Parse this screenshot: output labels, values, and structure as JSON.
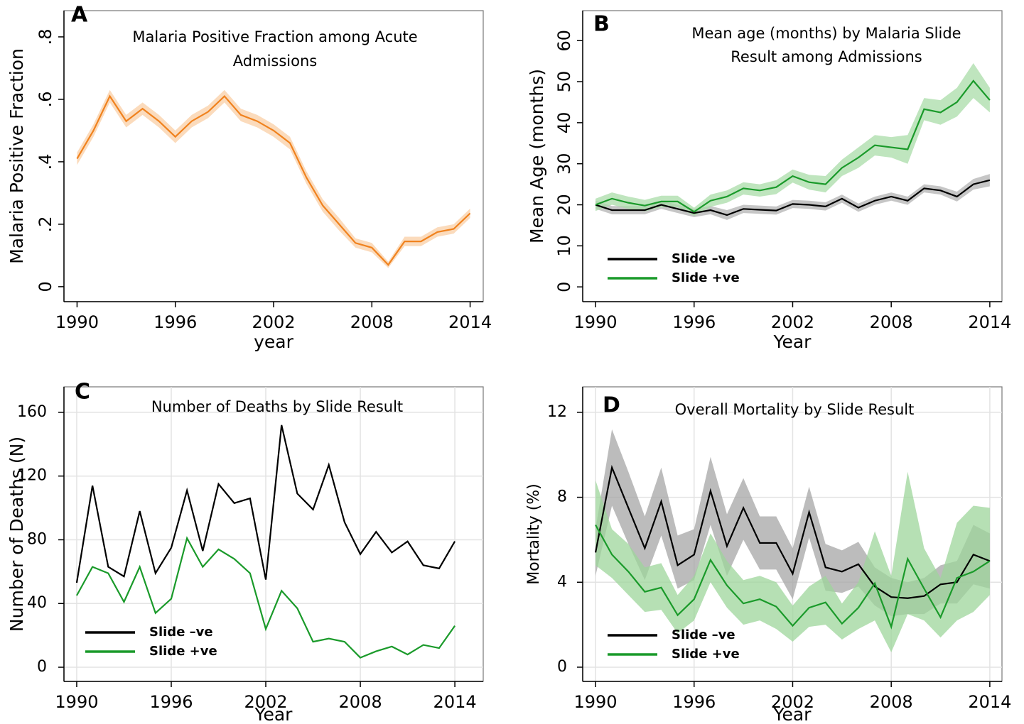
{
  "chart_data": [
    {
      "type": "line",
      "panel_label": "A",
      "title": [
        "Malaria Positive Fraction among Acute",
        "Admissions"
      ],
      "y_label": "Malaria Positive Fraction",
      "x_label": "year",
      "x": [
        1990,
        1991,
        1992,
        1993,
        1994,
        1995,
        1996,
        1997,
        1998,
        1999,
        2000,
        2001,
        2002,
        2003,
        2004,
        2005,
        2006,
        2007,
        2008,
        2009,
        2010,
        2011,
        2012,
        2013,
        2014
      ],
      "values": [
        0.41,
        0.5,
        0.61,
        0.53,
        0.57,
        0.53,
        0.48,
        0.53,
        0.56,
        0.61,
        0.55,
        0.53,
        0.5,
        0.46,
        0.35,
        0.26,
        0.2,
        0.14,
        0.125,
        0.07,
        0.145,
        0.145,
        0.175,
        0.185,
        0.235
      ],
      "upper": [
        0.43,
        0.52,
        0.63,
        0.55,
        0.59,
        0.55,
        0.5,
        0.55,
        0.58,
        0.63,
        0.57,
        0.55,
        0.52,
        0.48,
        0.37,
        0.28,
        0.22,
        0.155,
        0.14,
        0.08,
        0.16,
        0.16,
        0.19,
        0.2,
        0.25
      ],
      "lower": [
        0.39,
        0.48,
        0.59,
        0.51,
        0.55,
        0.51,
        0.46,
        0.51,
        0.54,
        0.59,
        0.53,
        0.51,
        0.48,
        0.44,
        0.33,
        0.24,
        0.18,
        0.125,
        0.11,
        0.06,
        0.13,
        0.13,
        0.16,
        0.17,
        0.22
      ],
      "color": "#f0821e",
      "band_color": "#f9cfa6",
      "xlim": [
        1989.2,
        2014.8
      ],
      "xticks": [
        1990,
        1996,
        2002,
        2008,
        2014
      ],
      "ylim": [
        -0.048,
        0.884
      ],
      "yticks": [
        0,
        {
          "value": 0.2,
          "label": ".2"
        },
        {
          "value": 0.4,
          "label": ".4"
        },
        {
          "value": 0.6,
          "label": ".6"
        },
        {
          "value": 0.8,
          "label": ".8"
        }
      ],
      "ytick_rotation": true
    },
    {
      "type": "line",
      "panel_label": "B",
      "title": [
        "Mean age (months) by Malaria Slide",
        "Result among Admissions"
      ],
      "y_label": "Mean Age (months)",
      "x_label": "Year",
      "x": [
        1990,
        1991,
        1992,
        1993,
        1994,
        1995,
        1996,
        1997,
        1998,
        1999,
        2000,
        2001,
        2002,
        2003,
        2004,
        2005,
        2006,
        2007,
        2008,
        2009,
        2010,
        2011,
        2012,
        2013,
        2014
      ],
      "series": [
        {
          "name": "Slide –ve",
          "color": "#000000",
          "band_color": "#b3b3b3",
          "values": [
            20,
            18.7,
            18.7,
            18.7,
            20,
            19,
            18,
            18.7,
            17.5,
            19,
            18.8,
            18.6,
            20.2,
            20,
            19.6,
            21.5,
            19.3,
            21,
            22,
            21,
            24,
            23.5,
            22,
            25,
            26
          ],
          "upper": [
            21,
            19.7,
            19.7,
            19.7,
            21,
            20,
            19,
            19.7,
            18.7,
            20,
            19.8,
            19.6,
            21.2,
            21,
            20.6,
            22.5,
            20.3,
            22,
            23,
            22,
            25,
            24.5,
            23.2,
            26.3,
            27.5
          ],
          "lower": [
            19,
            17.7,
            17.7,
            17.7,
            19,
            18,
            17,
            17.7,
            16.3,
            18,
            17.8,
            17.6,
            19.2,
            19,
            18.6,
            20.5,
            18.3,
            20,
            21,
            20,
            23,
            22.5,
            20.8,
            23.7,
            24.5
          ]
        },
        {
          "name": "Slide +ve",
          "color": "#1a9a2a",
          "band_color": "#a9dca8",
          "values": [
            20,
            21.5,
            20.5,
            19.8,
            20.8,
            20.8,
            18.3,
            21,
            22,
            24,
            23.5,
            24.3,
            27,
            25.5,
            25,
            29,
            31.5,
            34.5,
            34,
            33.5,
            43.3,
            42.5,
            45,
            50.2,
            45.5
          ],
          "upper": [
            21.5,
            23,
            22,
            21.2,
            22.2,
            22.2,
            19.3,
            22.5,
            23.5,
            25.5,
            25,
            26,
            28.6,
            27.3,
            27,
            31,
            34,
            37,
            36.5,
            37,
            46,
            45.5,
            48.5,
            54.5,
            48.5
          ],
          "lower": [
            18.5,
            20,
            19,
            18.4,
            19.4,
            19.4,
            17.3,
            19.5,
            20.5,
            22.5,
            22,
            22.6,
            25.4,
            23.7,
            23,
            27,
            29,
            32,
            31.5,
            30,
            40.6,
            39.5,
            41.5,
            46,
            42.5
          ]
        }
      ],
      "legend": "lower left",
      "xlim": [
        1989.22,
        2014.74
      ],
      "xticks": [
        1990,
        1996,
        2002,
        2008,
        2014
      ],
      "ylim": [
        -3.6,
        67.3
      ],
      "yticks": [
        0,
        10,
        20,
        30,
        40,
        50,
        60
      ],
      "ytick_rotation": true
    },
    {
      "type": "line",
      "panel_label": "C",
      "title": [
        "Number of Deaths by Slide Result"
      ],
      "y_label": "Number of Deaths (N)",
      "x_label": "Year",
      "x": [
        1990,
        1991,
        1992,
        1993,
        1994,
        1995,
        1996,
        1997,
        1998,
        1999,
        2000,
        2001,
        2002,
        2003,
        2004,
        2005,
        2006,
        2007,
        2008,
        2009,
        2010,
        2011,
        2012,
        2013,
        2014
      ],
      "series": [
        {
          "name": "Slide –ve",
          "color": "#000000",
          "values": [
            53,
            114,
            63,
            57,
            98,
            59,
            75,
            111,
            73,
            115,
            103,
            106,
            55,
            152,
            109,
            99,
            127,
            91,
            71,
            85,
            72,
            79,
            64,
            62,
            79
          ]
        },
        {
          "name": "Slide +ve",
          "color": "#1a9a2a",
          "values": [
            45,
            63,
            59,
            41,
            63,
            34,
            43,
            81,
            63,
            74,
            68,
            59,
            24,
            48,
            37,
            16,
            18,
            16,
            6,
            10,
            13,
            8,
            14,
            12,
            26
          ]
        }
      ],
      "legend": "lower left",
      "grid": true,
      "xlim": [
        1989.19,
        2015.8
      ],
      "xticks": [
        1990,
        1996,
        2002,
        2008,
        2014
      ],
      "ylim": [
        -8.9,
        176
      ],
      "yticks": [
        0,
        40,
        80,
        120,
        160
      ],
      "ytick_rotation": false
    },
    {
      "type": "line",
      "panel_label": "D",
      "title": [
        "Overall Mortality by Slide Result"
      ],
      "y_label": "Mortality (%)",
      "x_label": "Year",
      "x": [
        1990,
        1991,
        1992,
        1993,
        1994,
        1995,
        1996,
        1997,
        1998,
        1999,
        2000,
        2001,
        2002,
        2003,
        2004,
        2005,
        2006,
        2007,
        2008,
        2009,
        2010,
        2011,
        2012,
        2013,
        2014
      ],
      "series": [
        {
          "name": "Slide –ve",
          "color": "#000000",
          "band_color": "#a6a6a6",
          "values": [
            5.4,
            9.4,
            7.5,
            5.6,
            7.8,
            4.8,
            5.3,
            8.3,
            5.7,
            7.5,
            5.85,
            5.85,
            4.4,
            7.3,
            4.7,
            4.5,
            4.85,
            3.8,
            3.3,
            3.25,
            3.35,
            3.9,
            4.0,
            5.3,
            5.0
          ],
          "upper": [
            6.5,
            11.2,
            9.2,
            7.1,
            9.4,
            6.2,
            6.5,
            9.9,
            7.2,
            8.9,
            7.1,
            7.1,
            5.6,
            8.5,
            5.8,
            5.5,
            5.9,
            4.7,
            4.2,
            4.0,
            4.2,
            4.8,
            5.0,
            6.7,
            6.3
          ],
          "lower": [
            4.3,
            7.6,
            5.8,
            4.1,
            6.2,
            3.7,
            4.1,
            6.7,
            4.3,
            6.0,
            4.6,
            4.6,
            3.2,
            6.1,
            3.6,
            3.5,
            3.8,
            2.9,
            2.4,
            2.5,
            2.5,
            3.0,
            3.0,
            3.9,
            3.7
          ]
        },
        {
          "name": "Slide +ve",
          "color": "#1a9a2a",
          "band_color": "#9ed69b",
          "values": [
            6.7,
            5.3,
            4.5,
            3.55,
            3.75,
            2.45,
            3.2,
            5.05,
            3.85,
            3.0,
            3.2,
            2.85,
            1.95,
            2.8,
            3.05,
            2.05,
            2.8,
            3.95,
            1.9,
            5.1,
            3.7,
            2.35,
            4.2,
            4.5,
            5.0
          ],
          "upper": [
            8.8,
            6.5,
            5.8,
            4.7,
            4.9,
            3.4,
            4.3,
            6.3,
            5.0,
            4.1,
            4.3,
            4.0,
            2.9,
            3.8,
            4.3,
            3.0,
            4.0,
            6.4,
            4.3,
            9.2,
            5.6,
            4.2,
            6.8,
            7.6,
            7.5
          ],
          "lower": [
            4.8,
            4.2,
            3.4,
            2.6,
            2.7,
            1.6,
            2.2,
            4.0,
            2.8,
            2.0,
            2.2,
            1.8,
            1.2,
            1.9,
            2.0,
            1.3,
            1.8,
            2.2,
            0.7,
            2.5,
            2.2,
            1.4,
            2.2,
            2.6,
            3.4
          ]
        }
      ],
      "legend": "lower left",
      "grid": true,
      "xlim": [
        1989.22,
        2014.74
      ],
      "xticks": [
        1990,
        1996,
        2002,
        2008,
        2014
      ],
      "ylim": [
        -0.67,
        13.2
      ],
      "yticks": [
        0,
        4,
        8,
        12
      ],
      "ytick_rotation": false
    }
  ]
}
